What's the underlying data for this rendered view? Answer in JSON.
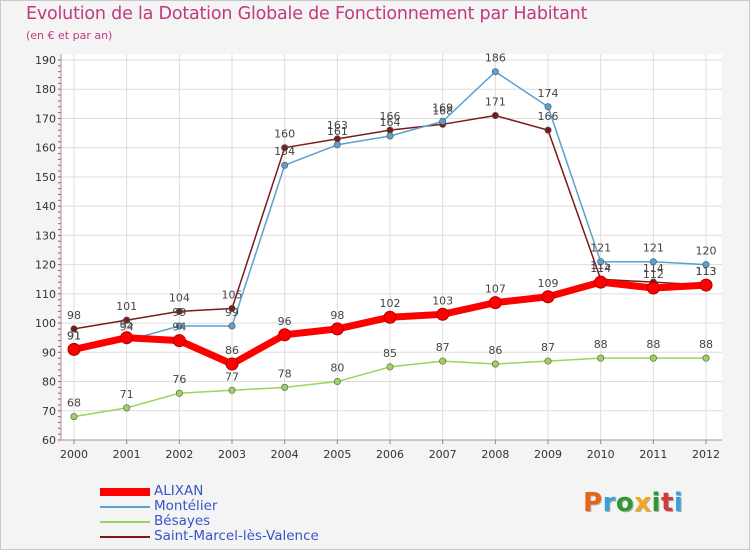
{
  "title": "Evolution de la Dotation Globale de Fonctionnement par Habitant",
  "subtitle": "(en € et par an)",
  "logo": {
    "text": "Proxiti",
    "colors": [
      "#e8621a",
      "#3aa0d8",
      "#2f9a2f",
      "#f0a81a",
      "#2f9a2f",
      "#d23a3a",
      "#3aa0d8"
    ]
  },
  "chart_data": {
    "type": "line",
    "x": [
      "2000",
      "2001",
      "2002",
      "2003",
      "2004",
      "2005",
      "2006",
      "2007",
      "2008",
      "2009",
      "2010",
      "2011",
      "2012"
    ],
    "ylim": [
      60,
      190
    ],
    "yticks": [
      60,
      70,
      80,
      90,
      100,
      110,
      120,
      130,
      140,
      150,
      160,
      170,
      180,
      190
    ],
    "grid": true,
    "legend_position": "bottom-left",
    "series": [
      {
        "name": "Saint-Marcel-lès-Valence",
        "color": "#7a1a1a",
        "values": [
          98,
          101,
          104,
          105,
          160,
          163,
          166,
          168,
          171,
          166,
          115,
          114,
          113
        ]
      },
      {
        "name": "Montélier",
        "color": "#5aa0d0",
        "values": [
          91,
          94,
          99,
          99,
          154,
          161,
          164,
          169,
          186,
          174,
          121,
          121,
          120
        ]
      },
      {
        "name": "Bésayes",
        "color": "#9bd45a",
        "values": [
          68,
          71,
          76,
          77,
          78,
          80,
          85,
          87,
          86,
          87,
          88,
          88,
          88
        ]
      },
      {
        "name": "ALIXAN",
        "color": "#ff0000",
        "values": [
          91,
          95,
          94,
          86,
          96,
          98,
          102,
          103,
          107,
          109,
          114,
          112,
          113
        ]
      }
    ],
    "legend": [
      "ALIXAN",
      "Montélier",
      "Bésayes",
      "Saint-Marcel-lès-Valence"
    ]
  }
}
